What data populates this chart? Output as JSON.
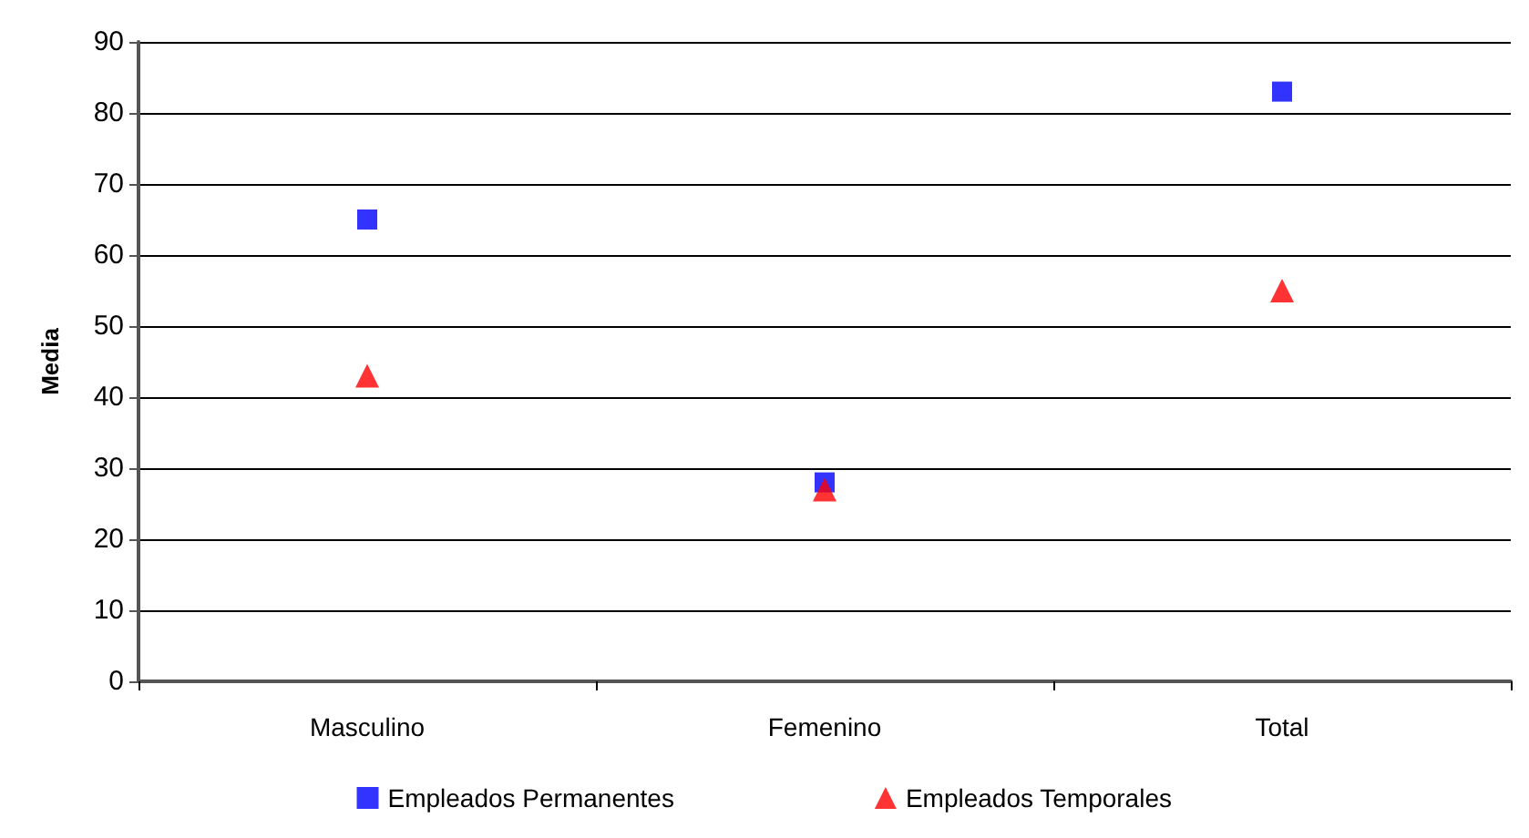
{
  "chart_data": {
    "type": "scatter",
    "ylabel": "Media",
    "categories": [
      "Masculino",
      "Femenino",
      "Total"
    ],
    "series": [
      {
        "name": "Empleados Permanentes",
        "color": "#0000ff",
        "marker": "square",
        "values": [
          65,
          28,
          83
        ]
      },
      {
        "name": "Empleados Temporales",
        "color": "#ff0000",
        "marker": "triangle",
        "values": [
          43,
          27,
          55
        ]
      }
    ],
    "ylim": [
      0,
      90
    ],
    "yticks": [
      0,
      10,
      20,
      30,
      40,
      50,
      60,
      70,
      80,
      90
    ],
    "grid": "y",
    "legend": "bottom"
  }
}
